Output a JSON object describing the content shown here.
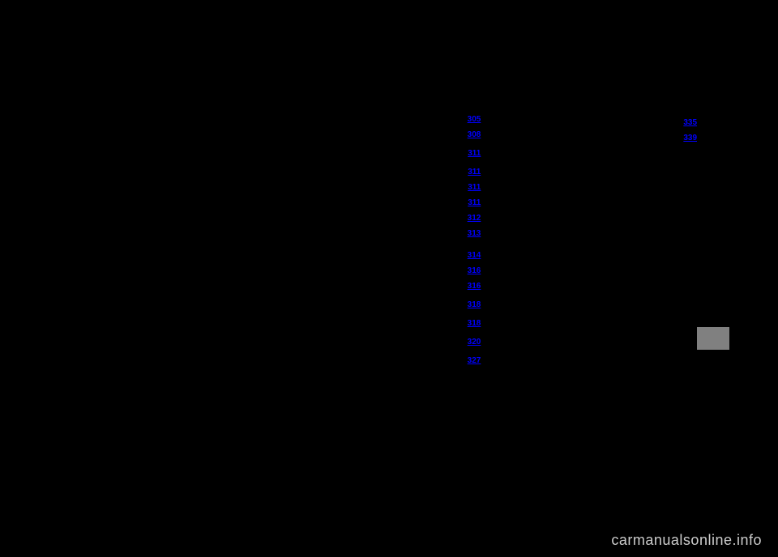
{
  "link_color": "#0000ff",
  "background_color": "#000000",
  "text_color": "#ffffff",
  "watermark": "carmanualsonline.info",
  "columns": [
    {
      "items": [
        {
          "label": "",
          "page": ""
        },
        {
          "label": "",
          "page": ""
        },
        {
          "label": "",
          "page": ""
        },
        {
          "label": "",
          "page": ""
        },
        {
          "label": "",
          "page": ""
        },
        {
          "label": "",
          "page": ""
        },
        {
          "label": "",
          "page": ""
        },
        {
          "label": "",
          "page": ""
        },
        {
          "label": "",
          "page": ""
        },
        {
          "label": "",
          "page": ""
        },
        {
          "label": "",
          "page": ""
        },
        {
          "label": "",
          "page": ""
        },
        {
          "label": "",
          "page": ""
        }
      ]
    },
    {
      "items": [
        {
          "label": "",
          "page": "305"
        },
        {
          "label": "",
          "page": "308"
        },
        {
          "label": "",
          "page": ""
        },
        {
          "label": "",
          "page": "311"
        },
        {
          "label": "",
          "page": ""
        },
        {
          "label": "",
          "page": "311"
        },
        {
          "label": "",
          "page": "311"
        },
        {
          "label": "",
          "page": "311"
        },
        {
          "label": "",
          "page": "312"
        },
        {
          "label": "",
          "page": "313"
        },
        {
          "label": "",
          "page": ""
        },
        {
          "label": "",
          "page": ""
        },
        {
          "label": "",
          "page": "314"
        },
        {
          "label": "",
          "page": "316"
        },
        {
          "label": "",
          "page": "316"
        },
        {
          "label": "",
          "page": ""
        },
        {
          "label": "",
          "page": "318"
        },
        {
          "label": "",
          "page": ""
        },
        {
          "label": "",
          "page": "318"
        },
        {
          "label": "",
          "page": ""
        },
        {
          "label": "",
          "page": "320"
        },
        {
          "label": "",
          "page": ""
        },
        {
          "label": "",
          "page": "327"
        }
      ]
    },
    {
      "items": [
        {
          "label": "",
          "page": ""
        },
        {
          "label": "",
          "page": "335"
        },
        {
          "label": "",
          "page": "339"
        }
      ]
    }
  ]
}
